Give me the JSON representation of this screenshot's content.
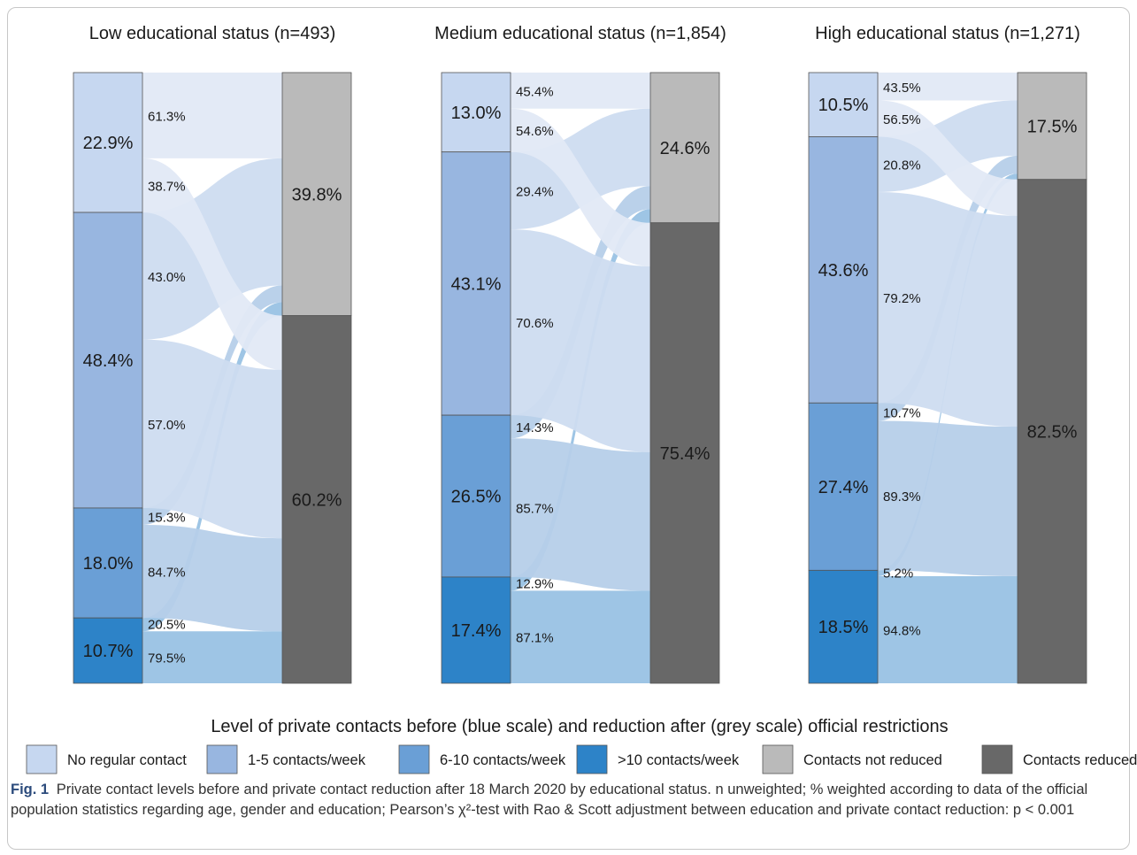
{
  "chart_data": [
    {
      "type": "sankey",
      "title": "Low educational status (n=493)",
      "before": [
        {
          "category": "No regular contact",
          "percent": "22.9%",
          "value": 22.9,
          "split": [
            {
              "to": "Contacts not reduced",
              "label": "61.3%",
              "value": 61.3
            },
            {
              "to": "Contacts reduced",
              "label": "38.7%",
              "value": 38.7
            }
          ]
        },
        {
          "category": "1-5 contacts/week",
          "percent": "48.4%",
          "value": 48.4,
          "split": [
            {
              "to": "Contacts not reduced",
              "label": "43.0%",
              "value": 43.0
            },
            {
              "to": "Contacts reduced",
              "label": "57.0%",
              "value": 57.0
            }
          ]
        },
        {
          "category": "6-10 contacts/week",
          "percent": "18.0%",
          "value": 18.0,
          "split": [
            {
              "to": "Contacts not reduced",
              "label": "15.3%",
              "value": 15.3
            },
            {
              "to": "Contacts reduced",
              "label": "84.7%",
              "value": 84.7
            }
          ]
        },
        {
          "category": ">10 contacts/week",
          "percent": "10.7%",
          "value": 10.7,
          "split": [
            {
              "to": "Contacts not reduced",
              "label": "20.5%",
              "value": 20.5
            },
            {
              "to": "Contacts reduced",
              "label": "79.5%",
              "value": 79.5
            }
          ]
        }
      ],
      "after": [
        {
          "category": "Contacts not reduced",
          "percent": "39.8%",
          "value": 39.8
        },
        {
          "category": "Contacts reduced",
          "percent": "60.2%",
          "value": 60.2
        }
      ]
    },
    {
      "type": "sankey",
      "title": "Medium educational status (n=1,854)",
      "before": [
        {
          "category": "No regular contact",
          "percent": "13.0%",
          "value": 13.0,
          "split": [
            {
              "to": "Contacts not reduced",
              "label": "45.4%",
              "value": 45.4
            },
            {
              "to": "Contacts reduced",
              "label": "54.6%",
              "value": 54.6
            }
          ]
        },
        {
          "category": "1-5 contacts/week",
          "percent": "43.1%",
          "value": 43.1,
          "split": [
            {
              "to": "Contacts not reduced",
              "label": "29.4%",
              "value": 29.4
            },
            {
              "to": "Contacts reduced",
              "label": "70.6%",
              "value": 70.6
            }
          ]
        },
        {
          "category": "6-10 contacts/week",
          "percent": "26.5%",
          "value": 26.5,
          "split": [
            {
              "to": "Contacts not reduced",
              "label": "14.3%",
              "value": 14.3
            },
            {
              "to": "Contacts reduced",
              "label": "85.7%",
              "value": 85.7
            }
          ]
        },
        {
          "category": ">10 contacts/week",
          "percent": "17.4%",
          "value": 17.4,
          "split": [
            {
              "to": "Contacts not reduced",
              "label": "12.9%",
              "value": 12.9
            },
            {
              "to": "Contacts reduced",
              "label": "87.1%",
              "value": 87.1
            }
          ]
        }
      ],
      "after": [
        {
          "category": "Contacts not reduced",
          "percent": "24.6%",
          "value": 24.6
        },
        {
          "category": "Contacts reduced",
          "percent": "75.4%",
          "value": 75.4
        }
      ]
    },
    {
      "type": "sankey",
      "title": "High educational status (n=1,271)",
      "before": [
        {
          "category": "No regular contact",
          "percent": "10.5%",
          "value": 10.5,
          "split": [
            {
              "to": "Contacts not reduced",
              "label": "43.5%",
              "value": 43.5
            },
            {
              "to": "Contacts reduced",
              "label": "56.5%",
              "value": 56.5
            }
          ]
        },
        {
          "category": "1-5 contacts/week",
          "percent": "43.6%",
          "value": 43.6,
          "split": [
            {
              "to": "Contacts not reduced",
              "label": "20.8%",
              "value": 20.8
            },
            {
              "to": "Contacts reduced",
              "label": "79.2%",
              "value": 79.2
            }
          ]
        },
        {
          "category": "6-10 contacts/week",
          "percent": "27.4%",
          "value": 27.4,
          "split": [
            {
              "to": "Contacts not reduced",
              "label": "10.7%",
              "value": 10.7
            },
            {
              "to": "Contacts reduced",
              "label": "89.3%",
              "value": 89.3
            }
          ]
        },
        {
          "category": ">10 contacts/week",
          "percent": "18.5%",
          "value": 18.5,
          "split": [
            {
              "to": "Contacts not reduced",
              "label": "5.2%",
              "value": 5.2
            },
            {
              "to": "Contacts reduced",
              "label": "94.8%",
              "value": 94.8
            }
          ]
        }
      ],
      "after": [
        {
          "category": "Contacts not reduced",
          "percent": "17.5%",
          "value": 17.5
        },
        {
          "category": "Contacts reduced",
          "percent": "82.5%",
          "value": 82.5
        }
      ]
    }
  ],
  "legend": {
    "title": "Level of private contacts before (blue scale) and reduction after (grey scale) official restrictions",
    "items": [
      {
        "label": "No regular contact",
        "color": "#c6d7f0"
      },
      {
        "label": "1-5 contacts/week",
        "color": "#98b6e0"
      },
      {
        "label": "6-10 contacts/week",
        "color": "#6a9fd6"
      },
      {
        "label": ">10 contacts/week",
        "color": "#2d83c8"
      },
      {
        "label": "Contacts not reduced",
        "color": "#bababa"
      },
      {
        "label": "Contacts reduced",
        "color": "#686868"
      }
    ]
  },
  "flow_colors": [
    "#e1e9f6",
    "#cddcf0",
    "#b6cfe9",
    "#99c2e4"
  ],
  "caption": {
    "fig_label": "Fig. 1",
    "text": "Private contact levels before and private contact reduction after 18 March 2020 by educational status. n unweighted; % weighted according to data of the official population statistics regarding age, gender and education; Pearson’s χ²-test with Rao & Scott adjustment between education and private contact reduction: p < 0.001"
  }
}
